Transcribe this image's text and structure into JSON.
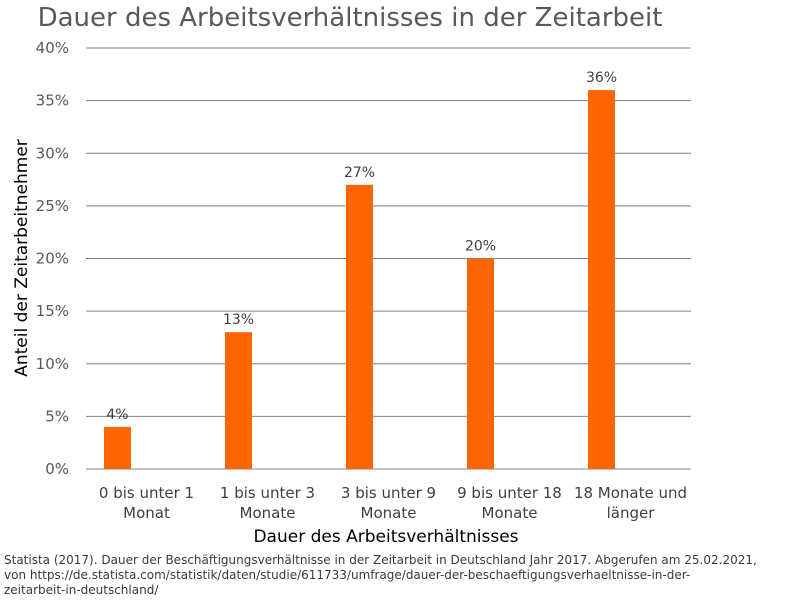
{
  "chart_data": {
    "type": "bar",
    "title": "Dauer des Arbeitsverhältnisses in der Zeitarbeit",
    "xlabel": "Dauer des Arbeitsverhältnisses",
    "ylabel": "Anteil der Zeitarbeitnehmer",
    "categories": [
      [
        "0 bis unter 1",
        "Monat"
      ],
      [
        "1  bis unter 3",
        "Monate"
      ],
      [
        "3 bis unter 9",
        "Monate"
      ],
      [
        "9 bis unter 18",
        "Monate"
      ],
      [
        "18 Monate und",
        "länger"
      ]
    ],
    "values": [
      4,
      13,
      27,
      20,
      36
    ],
    "data_labels": [
      "4%",
      "13%",
      "27%",
      "20%",
      "36%"
    ],
    "ylim": [
      0,
      40
    ],
    "yticks": [
      0,
      5,
      10,
      15,
      20,
      25,
      30,
      35,
      40
    ],
    "ytick_labels": [
      "0%",
      "5%",
      "10%",
      "15%",
      "20%",
      "25%",
      "30%",
      "35%",
      "40%"
    ],
    "grid": true,
    "legend": "none",
    "bar_color": "#FF6600",
    "grid_color": "#808080"
  },
  "source": {
    "line1": "Statista (2017). Dauer der Beschäftigungsverhältnisse  in der Zeitarbeit in Deutschland Jahr 2017. Abgerufen am 25.02.2021,",
    "line2": "von https://de.statista.com/statistik/daten/studie/611733/umfrage/dauer-der-beschaeftigungsverhaeltnisse-in-der-",
    "line3": "zeitarbeit-in-deutschland/"
  }
}
